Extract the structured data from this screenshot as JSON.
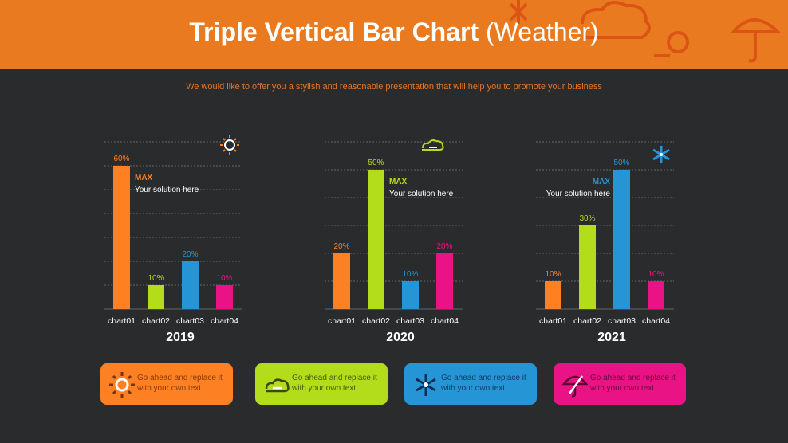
{
  "header": {
    "title_bold": "Triple Vertical Bar Chart",
    "title_light": "(Weather)"
  },
  "subtitle": "We would like to offer you a stylish and reasonable presentation that will help you to promote your business",
  "colors": {
    "header": "#ea7a1f",
    "bg": "#2a2b2d",
    "chart01": "#fd8023",
    "chart02": "#b3dc1b",
    "chart03": "#2595d6",
    "chart04": "#ea1386"
  },
  "chart_data": [
    {
      "type": "bar",
      "title": "2019",
      "icon": "sun-icon",
      "categories": [
        "chart01",
        "chart02",
        "chart03",
        "chart04"
      ],
      "values": [
        60,
        10,
        20,
        10
      ],
      "labels": [
        "60%",
        "10%",
        "20%",
        "10%"
      ],
      "ylim": [
        0,
        70
      ],
      "grid": true,
      "annotation": {
        "title": "MAX",
        "text": "Your solution here"
      }
    },
    {
      "type": "bar",
      "title": "2020",
      "icon": "cloud-icon",
      "categories": [
        "chart01",
        "chart02",
        "chart03",
        "chart04"
      ],
      "values": [
        20,
        50,
        10,
        20
      ],
      "labels": [
        "20%",
        "50%",
        "10%",
        "20%"
      ],
      "ylim": [
        0,
        60
      ],
      "grid": true,
      "annotation": {
        "title": "MAX",
        "text": "Your solution here"
      }
    },
    {
      "type": "bar",
      "title": "2021",
      "icon": "snowflake-icon",
      "categories": [
        "chart01",
        "chart02",
        "chart03",
        "chart04"
      ],
      "values": [
        10,
        30,
        50,
        10
      ],
      "labels": [
        "10%",
        "30%",
        "50%",
        "10%"
      ],
      "ylim": [
        0,
        60
      ],
      "grid": true,
      "annotation": {
        "title": "MAX",
        "text": "Your solution here"
      }
    }
  ],
  "cards": [
    {
      "icon": "sun-icon",
      "text": "Go ahead and replace it with your own text"
    },
    {
      "icon": "cloud-icon",
      "text": "Go ahead and replace it with your own text"
    },
    {
      "icon": "snowflake-icon",
      "text": "Go ahead and replace it with your own text"
    },
    {
      "icon": "umbrella-icon",
      "text": "Go ahead and replace it with your own text"
    }
  ]
}
